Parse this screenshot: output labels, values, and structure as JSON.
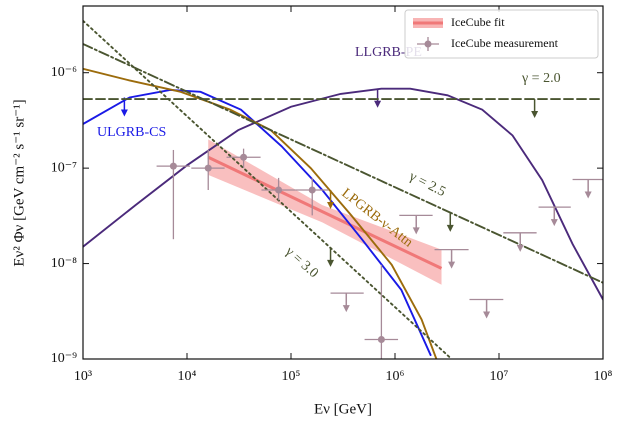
{
  "chart_data": {
    "type": "line",
    "xlabel": "Eν [GeV]",
    "ylabel": "Eν² Φν [GeV cm⁻² s⁻¹ sr⁻¹]",
    "xscale": "log",
    "yscale": "log",
    "xlim": [
      1000,
      100000000
    ],
    "ylim": [
      1e-09,
      5e-06
    ],
    "xticks": [
      {
        "value": 1000,
        "label": "10³"
      },
      {
        "value": 10000,
        "label": "10⁴"
      },
      {
        "value": 100000,
        "label": "10⁵"
      },
      {
        "value": 1000000,
        "label": "10⁶"
      },
      {
        "value": 10000000,
        "label": "10⁷"
      },
      {
        "value": 100000000,
        "label": "10⁸"
      }
    ],
    "yticks": [
      {
        "value": 1e-09,
        "label": "10⁻⁹"
      },
      {
        "value": 1e-08,
        "label": "10⁻⁸"
      },
      {
        "value": 1e-07,
        "label": "10⁻⁷"
      },
      {
        "value": 1e-06,
        "label": "10⁻⁶"
      }
    ],
    "legend": "upper right",
    "series": [
      {
        "label": "LLGRB-PE",
        "color": "#4b2a7b",
        "dash": "solid",
        "x": [
          1000,
          3200,
          10000,
          31000,
          100000,
          300000,
          740000,
          1400000,
          3200000,
          6900000,
          13500000,
          26000000,
          51000000,
          100000000
        ],
        "values": [
          1.5e-08,
          4.1e-08,
          1.07e-07,
          2.5e-07,
          4.4e-07,
          6e-07,
          6.8e-07,
          6.8e-07,
          5.8e-07,
          4.1e-07,
          2.2e-07,
          7.5e-08,
          1.6e-08,
          4.2e-09
        ],
        "arrow_x": 680000,
        "arrow_y": 6.8e-07
      },
      {
        "label": "ULGRB-CS",
        "color": "#1a1ae6",
        "dash": "solid",
        "x": [
          1000,
          2800,
          6900,
          13500,
          33000,
          81000,
          200000,
          480000,
          1150000,
          2200000
        ],
        "values": [
          2.9e-07,
          5.5e-07,
          6.6e-07,
          6.3e-07,
          4.1e-07,
          1.7e-07,
          5.9e-08,
          1.8e-08,
          5.3e-09,
          1.1e-09
        ],
        "arrow_x": 2500,
        "arrow_y": 5.5e-07
      },
      {
        "label": "LPGRB-ν-Attn",
        "color": "#9c6c0c",
        "dash": "solid",
        "x": [
          1000,
          2800,
          8700,
          26000,
          64000,
          155000,
          380000,
          930000,
          1800000,
          2500000
        ],
        "values": [
          1.1e-06,
          8.3e-07,
          6.3e-07,
          4.1e-07,
          2.5e-07,
          1e-07,
          3.2e-08,
          9.7e-09,
          2.6e-09,
          1e-09
        ],
        "arrow_x": 240000,
        "arrow_y": 5.9e-08
      },
      {
        "label": "γ = 2.0",
        "color": "#4a5530",
        "dash": "dashed",
        "x": [
          1000,
          100000000
        ],
        "values": [
          5.3e-07,
          5.3e-07
        ],
        "arrow_x": 22000000,
        "arrow_y": 5.3e-07
      },
      {
        "label": "γ = 2.5",
        "color": "#4a5530",
        "dash": "dashdot",
        "x": [
          1000,
          100000000
        ],
        "values": [
          2e-06,
          6.3e-09
        ],
        "arrow_x": 3400000,
        "arrow_y": 3.4e-08
      },
      {
        "label": "γ = 3.0",
        "color": "#4a5530",
        "dash": "dotted",
        "x": [
          1000,
          3500000
        ],
        "values": [
          3.5e-06,
          1e-09
        ],
        "arrow_x": 240000,
        "arrow_y": 1.46e-08
      }
    ],
    "fit": {
      "name": "IceCube fit",
      "color": "#f07878",
      "band_color": "#f8b4b4",
      "x": [
        16000,
        2800000
      ],
      "values": [
        1.3e-07,
        8.9e-09
      ],
      "band_x": [
        16000,
        200000,
        2800000
      ],
      "band_lower": [
        8.5e-08,
        2.7e-08,
        6e-09
      ],
      "band_upper": [
        2e-07,
        4.1e-08,
        1.4e-08
      ]
    },
    "measurements": {
      "name": "IceCube measurement",
      "color": "#a68a98",
      "x": [
        7400,
        16000,
        35000,
        76000,
        160000,
        340000,
        740000,
        1600000,
        3500000,
        7600000,
        16000000,
        34000000,
        72000000
      ],
      "values": [
        1.05e-07,
        1e-07,
        1.3e-07,
        5.9e-08,
        5.9e-08,
        4.9e-09,
        1.6e-09,
        3.2e-08,
        1.4e-08,
        4.2e-09,
        2.1e-08,
        3.9e-08,
        7.6e-08
      ],
      "x_low": [
        5100,
        11000,
        24000,
        52000,
        110000,
        240000,
        510000,
        1100000,
        2400000,
        5200000,
        11000000,
        24000000,
        51000000
      ],
      "x_high": [
        10700,
        23000,
        51000,
        110000,
        230000,
        500000,
        1070000,
        2300000,
        5100000,
        11000000,
        23000000,
        49000000,
        104000000
      ],
      "y_low": [
        1.8e-08,
        5.9e-08,
        1e-07,
        4.6e-08,
        3.2e-08,
        null,
        1e-09,
        null,
        null,
        null,
        null,
        null,
        null
      ],
      "y_high": [
        1.55e-07,
        1.55e-07,
        1.6e-07,
        7.9e-08,
        7.9e-08,
        null,
        9.7e-09,
        null,
        null,
        null,
        null,
        null,
        null
      ],
      "upper_limit": [
        false,
        false,
        false,
        false,
        false,
        true,
        false,
        true,
        true,
        true,
        true,
        true,
        true
      ]
    }
  }
}
